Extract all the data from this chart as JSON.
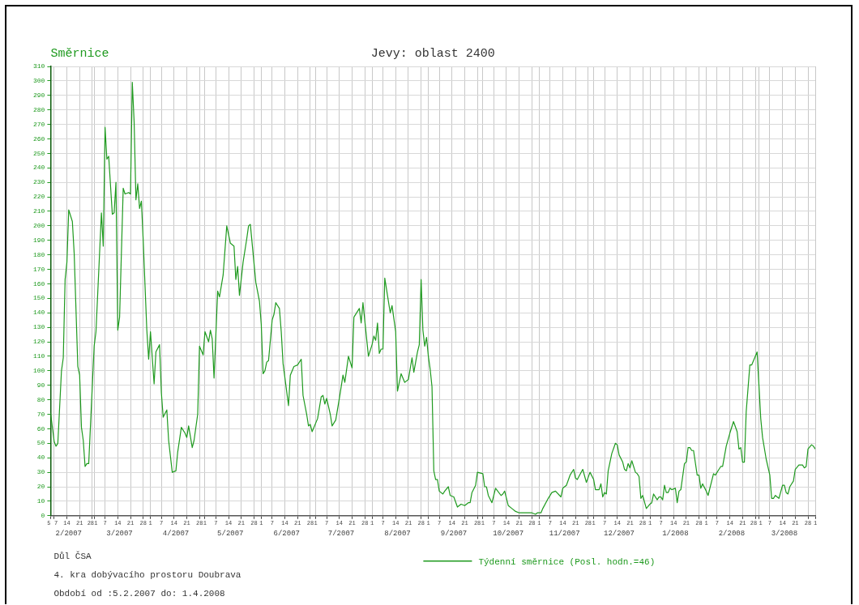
{
  "chart_data": {
    "type": "line",
    "title": "Jevy: oblast 2400",
    "ylabel": "Směrnice",
    "annotations": [
      "Důl ČSA",
      "4. kra dobývacího prostoru Doubrava",
      "Období od :5.2.2007 do: 1.4.2008"
    ],
    "legend": "bottom",
    "grid": true,
    "marker": "none",
    "line_style": "solid",
    "xlim": [
      "2007-02-05",
      "2008-04-01"
    ],
    "xticks": [
      {
        "value": "2007-02-05",
        "label": "5"
      },
      {
        "value": "2007-02-07",
        "label": "7"
      },
      {
        "value": "2007-02-14",
        "label": "14"
      },
      {
        "value": "2007-02-21",
        "label": "21"
      },
      {
        "value": "2007-02-28",
        "label": "28"
      },
      {
        "value": "2007-03-01",
        "label": "1"
      },
      {
        "value": "2007-03-07",
        "label": "7"
      },
      {
        "value": "2007-03-14",
        "label": "14"
      },
      {
        "value": "2007-03-21",
        "label": "21"
      },
      {
        "value": "2007-03-28",
        "label": "28"
      },
      {
        "value": "2007-04-01",
        "label": "1"
      },
      {
        "value": "2007-04-07",
        "label": "7"
      },
      {
        "value": "2007-04-14",
        "label": "14"
      },
      {
        "value": "2007-04-21",
        "label": "21"
      },
      {
        "value": "2007-04-28",
        "label": "28"
      },
      {
        "value": "2007-05-01",
        "label": "1"
      },
      {
        "value": "2007-05-07",
        "label": "7"
      },
      {
        "value": "2007-05-14",
        "label": "14"
      },
      {
        "value": "2007-05-21",
        "label": "21"
      },
      {
        "value": "2007-05-28",
        "label": "28"
      },
      {
        "value": "2007-06-01",
        "label": "1"
      },
      {
        "value": "2007-06-07",
        "label": "7"
      },
      {
        "value": "2007-06-14",
        "label": "14"
      },
      {
        "value": "2007-06-21",
        "label": "21"
      },
      {
        "value": "2007-06-28",
        "label": "28"
      },
      {
        "value": "2007-07-01",
        "label": "1"
      },
      {
        "value": "2007-07-07",
        "label": "7"
      },
      {
        "value": "2007-07-14",
        "label": "14"
      },
      {
        "value": "2007-07-21",
        "label": "21"
      },
      {
        "value": "2007-07-28",
        "label": "28"
      },
      {
        "value": "2007-08-01",
        "label": "1"
      },
      {
        "value": "2007-08-07",
        "label": "7"
      },
      {
        "value": "2007-08-14",
        "label": "14"
      },
      {
        "value": "2007-08-21",
        "label": "21"
      },
      {
        "value": "2007-08-28",
        "label": "28"
      },
      {
        "value": "2007-09-01",
        "label": "1"
      },
      {
        "value": "2007-09-07",
        "label": "7"
      },
      {
        "value": "2007-09-14",
        "label": "14"
      },
      {
        "value": "2007-09-21",
        "label": "21"
      },
      {
        "value": "2007-09-28",
        "label": "28"
      },
      {
        "value": "2007-10-01",
        "label": "1"
      },
      {
        "value": "2007-10-07",
        "label": "7"
      },
      {
        "value": "2007-10-14",
        "label": "14"
      },
      {
        "value": "2007-10-21",
        "label": "21"
      },
      {
        "value": "2007-10-28",
        "label": "28"
      },
      {
        "value": "2007-11-01",
        "label": "1"
      },
      {
        "value": "2007-11-07",
        "label": "7"
      },
      {
        "value": "2007-11-14",
        "label": "14"
      },
      {
        "value": "2007-11-21",
        "label": "21"
      },
      {
        "value": "2007-11-28",
        "label": "28"
      },
      {
        "value": "2007-12-01",
        "label": "1"
      },
      {
        "value": "2007-12-07",
        "label": "7"
      },
      {
        "value": "2007-12-14",
        "label": "14"
      },
      {
        "value": "2007-12-21",
        "label": "21"
      },
      {
        "value": "2007-12-28",
        "label": "28"
      },
      {
        "value": "2008-01-01",
        "label": "1"
      },
      {
        "value": "2008-01-07",
        "label": "7"
      },
      {
        "value": "2008-01-14",
        "label": "14"
      },
      {
        "value": "2008-01-21",
        "label": "21"
      },
      {
        "value": "2008-01-28",
        "label": "28"
      },
      {
        "value": "2008-02-01",
        "label": "1"
      },
      {
        "value": "2008-02-07",
        "label": "7"
      },
      {
        "value": "2008-02-14",
        "label": "14"
      },
      {
        "value": "2008-02-21",
        "label": "21"
      },
      {
        "value": "2008-02-28",
        "label": "28"
      },
      {
        "value": "2008-03-01",
        "label": "1"
      },
      {
        "value": "2008-03-07",
        "label": "7"
      },
      {
        "value": "2008-03-14",
        "label": "14"
      },
      {
        "value": "2008-03-21",
        "label": "21"
      },
      {
        "value": "2008-03-28",
        "label": "28"
      },
      {
        "value": "2008-04-01",
        "label": "1"
      }
    ],
    "x2lim": [
      "2007-02-05",
      "2008-04-01"
    ],
    "x2ticks": [
      {
        "value": "2007-02-15",
        "label": "2/2007"
      },
      {
        "value": "2007-03-15",
        "label": "3/2007"
      },
      {
        "value": "2007-04-15",
        "label": "4/2007"
      },
      {
        "value": "2007-05-15",
        "label": "5/2007"
      },
      {
        "value": "2007-06-15",
        "label": "6/2007"
      },
      {
        "value": "2007-07-15",
        "label": "7/2007"
      },
      {
        "value": "2007-08-15",
        "label": "8/2007"
      },
      {
        "value": "2007-09-15",
        "label": "9/2007"
      },
      {
        "value": "2007-10-15",
        "label": "10/2007"
      },
      {
        "value": "2007-11-15",
        "label": "11/2007"
      },
      {
        "value": "2007-12-15",
        "label": "12/2007"
      },
      {
        "value": "2008-01-15",
        "label": "1/2008"
      },
      {
        "value": "2008-02-15",
        "label": "2/2008"
      },
      {
        "value": "2008-03-15",
        "label": "3/2008"
      }
    ],
    "ylim": [
      0,
      310
    ],
    "yticks": [
      0,
      10,
      20,
      30,
      40,
      50,
      60,
      70,
      80,
      90,
      100,
      110,
      120,
      130,
      140,
      150,
      160,
      170,
      180,
      190,
      200,
      210,
      220,
      230,
      240,
      250,
      260,
      270,
      280,
      290,
      300,
      310
    ],
    "series": [
      {
        "name": "Týdenní směrnice (Posl. hodn.=46)",
        "color": "#1f9a1f",
        "x": [
          "2007-02-05",
          "2007-02-07",
          "2007-02-08",
          "2007-02-09",
          "2007-02-11",
          "2007-02-12",
          "2007-02-13",
          "2007-02-14",
          "2007-02-15",
          "2007-02-17",
          "2007-02-18",
          "2007-02-20",
          "2007-02-21",
          "2007-02-22",
          "2007-02-23",
          "2007-02-24",
          "2007-02-25",
          "2007-02-26",
          "2007-03-01",
          "2007-03-02",
          "2007-03-05",
          "2007-03-06",
          "2007-03-07",
          "2007-03-08",
          "2007-03-09",
          "2007-03-11",
          "2007-03-12",
          "2007-03-13",
          "2007-03-14",
          "2007-03-15",
          "2007-03-17",
          "2007-03-18",
          "2007-03-20",
          "2007-03-21",
          "2007-03-22",
          "2007-03-23",
          "2007-03-24",
          "2007-03-25",
          "2007-03-26",
          "2007-03-27",
          "2007-03-28",
          "2007-03-30",
          "2007-03-31",
          "2007-04-01",
          "2007-04-03",
          "2007-04-04",
          "2007-04-06",
          "2007-04-07",
          "2007-04-08",
          "2007-04-10",
          "2007-04-11",
          "2007-04-13",
          "2007-04-15",
          "2007-04-16",
          "2007-04-18",
          "2007-04-20",
          "2007-04-21",
          "2007-04-22",
          "2007-04-24",
          "2007-04-25",
          "2007-04-27",
          "2007-04-28",
          "2007-04-30",
          "2007-05-01",
          "2007-05-03",
          "2007-05-04",
          "2007-05-05",
          "2007-05-06",
          "2007-05-08",
          "2007-05-09",
          "2007-05-11",
          "2007-05-13",
          "2007-05-15",
          "2007-05-17",
          "2007-05-18",
          "2007-05-19",
          "2007-05-20",
          "2007-05-22",
          "2007-05-24",
          "2007-05-25",
          "2007-05-26",
          "2007-05-29",
          "2007-05-31",
          "2007-06-01",
          "2007-06-02",
          "2007-06-03",
          "2007-06-04",
          "2007-06-05",
          "2007-06-07",
          "2007-06-08",
          "2007-06-09",
          "2007-06-11",
          "2007-06-12",
          "2007-06-13",
          "2007-06-16",
          "2007-06-17",
          "2007-06-19",
          "2007-06-21",
          "2007-06-23",
          "2007-06-24",
          "2007-06-26",
          "2007-06-27",
          "2007-06-28",
          "2007-06-29",
          "2007-07-02",
          "2007-07-04",
          "2007-07-05",
          "2007-07-06",
          "2007-07-07",
          "2007-07-09",
          "2007-07-10",
          "2007-07-12",
          "2007-07-14",
          "2007-07-16",
          "2007-07-17",
          "2007-07-19",
          "2007-07-21",
          "2007-07-22",
          "2007-07-25",
          "2007-07-26",
          "2007-07-27",
          "2007-07-30",
          "2007-08-01",
          "2007-08-02",
          "2007-08-03",
          "2007-08-04",
          "2007-08-05",
          "2007-08-06",
          "2007-08-07",
          "2007-08-08",
          "2007-08-11",
          "2007-08-12",
          "2007-08-14",
          "2007-08-15",
          "2007-08-17",
          "2007-08-19",
          "2007-08-21",
          "2007-08-23",
          "2007-08-24",
          "2007-08-26",
          "2007-08-27",
          "2007-08-28",
          "2007-08-29",
          "2007-08-30",
          "2007-08-31",
          "2007-09-01",
          "2007-09-02",
          "2007-09-03",
          "2007-09-04",
          "2007-09-05",
          "2007-09-06",
          "2007-09-07",
          "2007-09-09",
          "2007-09-10",
          "2007-09-12",
          "2007-09-13",
          "2007-09-15",
          "2007-09-17",
          "2007-09-19",
          "2007-09-21",
          "2007-09-23",
          "2007-09-24",
          "2007-09-25",
          "2007-09-27",
          "2007-09-28",
          "2007-10-01",
          "2007-10-02",
          "2007-10-03",
          "2007-10-04",
          "2007-10-06",
          "2007-10-08",
          "2007-10-11",
          "2007-10-12",
          "2007-10-13",
          "2007-10-15",
          "2007-10-17",
          "2007-10-19",
          "2007-10-21",
          "2007-10-23",
          "2007-10-26",
          "2007-10-28",
          "2007-10-30",
          "2007-10-31",
          "2007-11-02",
          "2007-11-03",
          "2007-11-06",
          "2007-11-08",
          "2007-11-10",
          "2007-11-13",
          "2007-11-14",
          "2007-11-16",
          "2007-11-18",
          "2007-11-20",
          "2007-11-21",
          "2007-11-22",
          "2007-11-25",
          "2007-11-27",
          "2007-11-29",
          "2007-12-01",
          "2007-12-02",
          "2007-12-04",
          "2007-12-05",
          "2007-12-06",
          "2007-12-07",
          "2007-12-08",
          "2007-12-09",
          "2007-12-11",
          "2007-12-13",
          "2007-12-14",
          "2007-12-15",
          "2007-12-17",
          "2007-12-18",
          "2007-12-19",
          "2007-12-20",
          "2007-12-21",
          "2007-12-22",
          "2007-12-24",
          "2007-12-25",
          "2007-12-26",
          "2007-12-27",
          "2007-12-28",
          "2007-12-30",
          "2008-01-01",
          "2008-01-02",
          "2008-01-03",
          "2008-01-05",
          "2008-01-06",
          "2008-01-07",
          "2008-01-08",
          "2008-01-09",
          "2008-01-10",
          "2008-01-11",
          "2008-01-12",
          "2008-01-13",
          "2008-01-15",
          "2008-01-16",
          "2008-01-17",
          "2008-01-18",
          "2008-01-20",
          "2008-01-21",
          "2008-01-22",
          "2008-01-23",
          "2008-01-24",
          "2008-01-25",
          "2008-01-27",
          "2008-01-28",
          "2008-01-29",
          "2008-01-30",
          "2008-02-01",
          "2008-02-02",
          "2008-02-05",
          "2008-02-06",
          "2008-02-08",
          "2008-02-09",
          "2008-02-10",
          "2008-02-12",
          "2008-02-14",
          "2008-02-16",
          "2008-02-18",
          "2008-02-19",
          "2008-02-20",
          "2008-02-21",
          "2008-02-22",
          "2008-02-23",
          "2008-02-25",
          "2008-02-26",
          "2008-02-27",
          "2008-02-28",
          "2008-02-29",
          "2008-03-02",
          "2008-03-03",
          "2008-03-05",
          "2008-03-07",
          "2008-03-08",
          "2008-03-09",
          "2008-03-10",
          "2008-03-12",
          "2008-03-14",
          "2008-03-15",
          "2008-03-16",
          "2008-03-17",
          "2008-03-18",
          "2008-03-20",
          "2008-03-21",
          "2008-03-23",
          "2008-03-25",
          "2008-03-26",
          "2008-03-27",
          "2008-03-28",
          "2008-03-30",
          "2008-03-31",
          "2008-04-01"
        ],
        "values": [
          71,
          51,
          48,
          50,
          100,
          109,
          163,
          175,
          211,
          203,
          181,
          103,
          97,
          61,
          52,
          34,
          36,
          36,
          117,
          127,
          209,
          186,
          268,
          246,
          248,
          208,
          209,
          230,
          128,
          137,
          226,
          222,
          223,
          222,
          299,
          272,
          218,
          229,
          212,
          217,
          190,
          128,
          108,
          127,
          91,
          113,
          118,
          85,
          68,
          73,
          52,
          30,
          31,
          44,
          61,
          57,
          54,
          62,
          47,
          52,
          70,
          117,
          111,
          127,
          120,
          128,
          122,
          95,
          155,
          151,
          166,
          200,
          188,
          186,
          163,
          172,
          152,
          175,
          191,
          200,
          201,
          161,
          148,
          132,
          98,
          100,
          106,
          107,
          135,
          139,
          147,
          143,
          127,
          105,
          76,
          97,
          103,
          104,
          108,
          83,
          70,
          62,
          63,
          58,
          67,
          82,
          83,
          77,
          81,
          70,
          62,
          66,
          81,
          97,
          92,
          110,
          102,
          137,
          143,
          133,
          147,
          110,
          118,
          124,
          121,
          133,
          112,
          115,
          115,
          164,
          140,
          145,
          127,
          86,
          98,
          92,
          94,
          109,
          99,
          113,
          118,
          163,
          128,
          117,
          123,
          110,
          101,
          89,
          31,
          25,
          25,
          17,
          15,
          17,
          20,
          14,
          13,
          6,
          8,
          7,
          9,
          9,
          16,
          21,
          30,
          29,
          20,
          20,
          14,
          9,
          19,
          14,
          15,
          17,
          7,
          5,
          3,
          2,
          2,
          2,
          2,
          1,
          2,
          2,
          5,
          12,
          16,
          17,
          13,
          19,
          21,
          28,
          32,
          26,
          25,
          32,
          23,
          30,
          25,
          18,
          18,
          22,
          13,
          16,
          15,
          31,
          43,
          50,
          49,
          42,
          37,
          32,
          31,
          36,
          33,
          38,
          30,
          29,
          27,
          12,
          14,
          5,
          8,
          9,
          15,
          11,
          13,
          13,
          11,
          21,
          16,
          16,
          19,
          18,
          19,
          9,
          17,
          18,
          36,
          37,
          47,
          47,
          45,
          45,
          28,
          28,
          19,
          22,
          17,
          14,
          29,
          28,
          32,
          34,
          34,
          48,
          57,
          65,
          58,
          46,
          47,
          37,
          37,
          72,
          104,
          104,
          107,
          110,
          113,
          67,
          54,
          39,
          28,
          12,
          12,
          14,
          12,
          21,
          21,
          16,
          15,
          20,
          24,
          32,
          35,
          35,
          33,
          34,
          46,
          49,
          48,
          46
        ]
      }
    ]
  }
}
